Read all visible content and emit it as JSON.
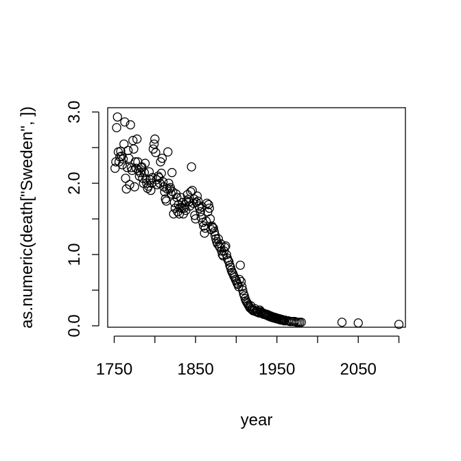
{
  "chart_data": {
    "type": "scatter",
    "title": "",
    "xlabel": "year",
    "ylabel": "as.numeric(death[\"Sweden\", ])",
    "xlim": [
      1742,
      2108
    ],
    "ylim": [
      -0.02,
      3.06
    ],
    "xticks": [
      1750,
      1800,
      1850,
      1900,
      1950,
      2000,
      2050,
      2100
    ],
    "xtick_labels": [
      "1750",
      "",
      "1850",
      "",
      "1950",
      "",
      "2050",
      ""
    ],
    "yticks": [
      0.0,
      0.5,
      1.0,
      1.5,
      2.0,
      2.5,
      3.0
    ],
    "ytick_labels": [
      "0.0",
      "",
      "1.0",
      "",
      "2.0",
      "",
      "3.0"
    ],
    "grid": false,
    "legend": "none",
    "marker": "open-circle",
    "marker_color": "#000000",
    "points": [
      [
        1751,
        2.21
      ],
      [
        1752,
        2.3
      ],
      [
        1753,
        2.78
      ],
      [
        1754,
        2.93
      ],
      [
        1755,
        2.44
      ],
      [
        1756,
        2.3
      ],
      [
        1757,
        2.37
      ],
      [
        1758,
        2.45
      ],
      [
        1759,
        2.38
      ],
      [
        1760,
        2.26
      ],
      [
        1761,
        2.34
      ],
      [
        1762,
        2.55
      ],
      [
        1763,
        2.86
      ],
      [
        1764,
        2.07
      ],
      [
        1765,
        1.92
      ],
      [
        1766,
        2.22
      ],
      [
        1767,
        2.46
      ],
      [
        1768,
        2.35
      ],
      [
        1769,
        1.98
      ],
      [
        1770,
        2.82
      ],
      [
        1771,
        2.22
      ],
      [
        1772,
        2.18
      ],
      [
        1773,
        2.6
      ],
      [
        1774,
        2.48
      ],
      [
        1775,
        1.95
      ],
      [
        1776,
        2.3
      ],
      [
        1777,
        2.21
      ],
      [
        1778,
        2.62
      ],
      [
        1779,
        2.3
      ],
      [
        1780,
        2.18
      ],
      [
        1781,
        2.1
      ],
      [
        1782,
        2.15
      ],
      [
        1783,
        2.22
      ],
      [
        1784,
        2.23
      ],
      [
        1785,
        2.07
      ],
      [
        1786,
        2.0
      ],
      [
        1787,
        2.15
      ],
      [
        1788,
        2.28
      ],
      [
        1789,
        2.06
      ],
      [
        1790,
        2.0
      ],
      [
        1791,
        1.93
      ],
      [
        1792,
        1.96
      ],
      [
        1793,
        2.16
      ],
      [
        1794,
        2.05
      ],
      [
        1795,
        1.9
      ],
      [
        1796,
        2.0
      ],
      [
        1797,
        2.08
      ],
      [
        1798,
        2.48
      ],
      [
        1799,
        2.55
      ],
      [
        1800,
        2.62
      ],
      [
        1801,
        2.43
      ],
      [
        1802,
        2.05
      ],
      [
        1803,
        1.98
      ],
      [
        1804,
        2.1
      ],
      [
        1805,
        2.08
      ],
      [
        1806,
        2.0
      ],
      [
        1807,
        2.3
      ],
      [
        1808,
        2.14
      ],
      [
        1809,
        2.35
      ],
      [
        1810,
        2.02
      ],
      [
        1811,
        1.95
      ],
      [
        1812,
        1.88
      ],
      [
        1813,
        1.78
      ],
      [
        1814,
        1.75
      ],
      [
        1815,
        1.92
      ],
      [
        1816,
        2.44
      ],
      [
        1817,
        2.0
      ],
      [
        1818,
        1.92
      ],
      [
        1819,
        1.94
      ],
      [
        1820,
        1.85
      ],
      [
        1821,
        2.15
      ],
      [
        1822,
        1.88
      ],
      [
        1823,
        1.57
      ],
      [
        1824,
        1.73
      ],
      [
        1825,
        1.65
      ],
      [
        1826,
        1.85
      ],
      [
        1827,
        1.8
      ],
      [
        1828,
        1.6
      ],
      [
        1829,
        1.7
      ],
      [
        1830,
        1.57
      ],
      [
        1831,
        1.66
      ],
      [
        1832,
        1.8
      ],
      [
        1833,
        1.65
      ],
      [
        1834,
        1.73
      ],
      [
        1835,
        1.57
      ],
      [
        1836,
        1.65
      ],
      [
        1837,
        1.7
      ],
      [
        1838,
        1.62
      ],
      [
        1839,
        1.75
      ],
      [
        1840,
        1.84
      ],
      [
        1841,
        1.77
      ],
      [
        1842,
        1.74
      ],
      [
        1843,
        1.68
      ],
      [
        1844,
        1.88
      ],
      [
        1845,
        2.23
      ],
      [
        1846,
        1.9
      ],
      [
        1847,
        1.72
      ],
      [
        1848,
        1.78
      ],
      [
        1849,
        1.55
      ],
      [
        1850,
        1.5
      ],
      [
        1851,
        1.73
      ],
      [
        1852,
        1.82
      ],
      [
        1853,
        1.75
      ],
      [
        1854,
        1.68
      ],
      [
        1855,
        1.65
      ],
      [
        1856,
        1.6
      ],
      [
        1857,
        1.52
      ],
      [
        1858,
        1.67
      ],
      [
        1859,
        1.45
      ],
      [
        1860,
        1.4
      ],
      [
        1861,
        1.3
      ],
      [
        1862,
        1.37
      ],
      [
        1863,
        1.47
      ],
      [
        1864,
        1.72
      ],
      [
        1865,
        1.6
      ],
      [
        1866,
        1.7
      ],
      [
        1867,
        1.65
      ],
      [
        1868,
        1.5
      ],
      [
        1869,
        1.35
      ],
      [
        1870,
        1.4
      ],
      [
        1871,
        1.38
      ],
      [
        1872,
        1.37
      ],
      [
        1873,
        1.32
      ],
      [
        1874,
        1.27
      ],
      [
        1875,
        1.22
      ],
      [
        1876,
        1.18
      ],
      [
        1877,
        1.15
      ],
      [
        1878,
        1.22
      ],
      [
        1879,
        1.12
      ],
      [
        1880,
        1.1
      ],
      [
        1881,
        1.15
      ],
      [
        1882,
        1.05
      ],
      [
        1883,
        1.0
      ],
      [
        1884,
        0.98
      ],
      [
        1885,
        1.05
      ],
      [
        1886,
        1.1
      ],
      [
        1887,
        1.12
      ],
      [
        1888,
        1.0
      ],
      [
        1889,
        0.95
      ],
      [
        1890,
        0.92
      ],
      [
        1891,
        0.9
      ],
      [
        1892,
        0.85
      ],
      [
        1893,
        0.82
      ],
      [
        1894,
        0.78
      ],
      [
        1895,
        0.75
      ],
      [
        1896,
        0.73
      ],
      [
        1897,
        0.7
      ],
      [
        1898,
        0.68
      ],
      [
        1899,
        0.65
      ],
      [
        1900,
        0.63
      ],
      [
        1901,
        0.6
      ],
      [
        1902,
        0.58
      ],
      [
        1903,
        0.55
      ],
      [
        1904,
        0.65
      ],
      [
        1905,
        0.85
      ],
      [
        1906,
        0.62
      ],
      [
        1907,
        0.55
      ],
      [
        1908,
        0.5
      ],
      [
        1909,
        0.45
      ],
      [
        1910,
        0.42
      ],
      [
        1911,
        0.38
      ],
      [
        1912,
        0.35
      ],
      [
        1913,
        0.33
      ],
      [
        1914,
        0.31
      ],
      [
        1915,
        0.29
      ],
      [
        1916,
        0.27
      ],
      [
        1917,
        0.25
      ],
      [
        1918,
        0.28
      ],
      [
        1919,
        0.23
      ],
      [
        1920,
        0.22
      ],
      [
        1921,
        0.21
      ],
      [
        1922,
        0.22
      ],
      [
        1923,
        0.24
      ],
      [
        1924,
        0.2
      ],
      [
        1925,
        0.21
      ],
      [
        1926,
        0.19
      ],
      [
        1927,
        0.2
      ],
      [
        1928,
        0.18
      ],
      [
        1929,
        0.22
      ],
      [
        1930,
        0.2
      ],
      [
        1931,
        0.19
      ],
      [
        1932,
        0.17
      ],
      [
        1933,
        0.18
      ],
      [
        1934,
        0.16
      ],
      [
        1935,
        0.17
      ],
      [
        1936,
        0.16
      ],
      [
        1937,
        0.15
      ],
      [
        1938,
        0.16
      ],
      [
        1939,
        0.14
      ],
      [
        1940,
        0.15
      ],
      [
        1941,
        0.13
      ],
      [
        1942,
        0.14
      ],
      [
        1943,
        0.12
      ],
      [
        1944,
        0.13
      ],
      [
        1945,
        0.12
      ],
      [
        1946,
        0.11
      ],
      [
        1947,
        0.12
      ],
      [
        1948,
        0.11
      ],
      [
        1949,
        0.1
      ],
      [
        1950,
        0.11
      ],
      [
        1951,
        0.1
      ],
      [
        1952,
        0.09
      ],
      [
        1953,
        0.1
      ],
      [
        1954,
        0.09
      ],
      [
        1955,
        0.08
      ],
      [
        1956,
        0.09
      ],
      [
        1957,
        0.08
      ],
      [
        1958,
        0.08
      ],
      [
        1959,
        0.07
      ],
      [
        1960,
        0.08
      ],
      [
        1962,
        0.07
      ],
      [
        1964,
        0.07
      ],
      [
        1966,
        0.06
      ],
      [
        1968,
        0.06
      ],
      [
        1970,
        0.06
      ],
      [
        1972,
        0.06
      ],
      [
        1974,
        0.05
      ],
      [
        1976,
        0.05
      ],
      [
        1978,
        0.05
      ],
      [
        1980,
        0.05
      ],
      [
        2030,
        0.05
      ],
      [
        2050,
        0.04
      ],
      [
        2100,
        0.02
      ]
    ]
  }
}
